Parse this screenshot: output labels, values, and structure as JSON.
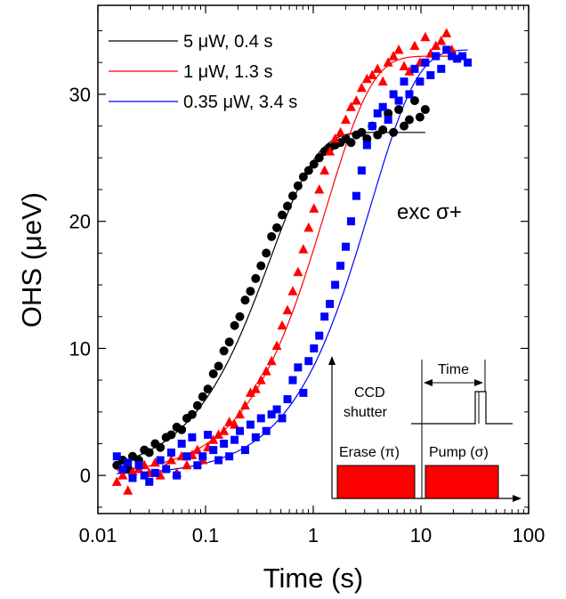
{
  "chart_data": {
    "type": "scatter",
    "xlabel": "Time (s)",
    "ylabel": "OHS (μeV)",
    "x_scale": "log",
    "xlim": [
      0.01,
      100
    ],
    "ylim": [
      -3,
      37
    ],
    "x_ticks": [
      0.01,
      0.1,
      1,
      10,
      100
    ],
    "x_tick_labels": [
      "0.01",
      "0.1",
      "1",
      "10",
      "100"
    ],
    "y_ticks": [
      0,
      10,
      20,
      30
    ],
    "y_tick_labels": [
      "0",
      "10",
      "20",
      "30"
    ],
    "legend_position": "top-left",
    "annotation": "exc σ+",
    "series": [
      {
        "name": "5 μW, 0.4 s",
        "color": "#000000",
        "marker": "circle",
        "x": [
          0.015,
          0.017,
          0.019,
          0.021,
          0.024,
          0.027,
          0.03,
          0.034,
          0.038,
          0.043,
          0.048,
          0.054,
          0.06,
          0.067,
          0.075,
          0.084,
          0.094,
          0.105,
          0.118,
          0.132,
          0.148,
          0.166,
          0.186,
          0.208,
          0.233,
          0.261,
          0.292,
          0.327,
          0.366,
          0.41,
          0.459,
          0.514,
          0.576,
          0.645,
          0.722,
          0.809,
          0.906,
          1.015,
          1.137,
          1.273,
          1.426,
          1.597,
          1.789,
          2.003,
          2.244,
          2.513,
          2.815,
          3.153,
          3.531,
          3.955,
          4.43,
          4.961,
          5.557,
          6.224,
          6.971,
          7.807,
          8.744,
          9.793,
          10.97
        ],
        "y": [
          0.8,
          1.2,
          0.5,
          1.5,
          1.2,
          2.0,
          1.8,
          2.5,
          2.2,
          3.0,
          3.2,
          3.8,
          3.6,
          4.5,
          4.8,
          5.5,
          6.2,
          6.8,
          8.0,
          8.6,
          9.8,
          10.5,
          11.8,
          12.5,
          13.8,
          14.5,
          15.5,
          16.5,
          17.5,
          18.8,
          19.5,
          20.5,
          21.2,
          22.0,
          22.8,
          23.5,
          24.0,
          24.5,
          25.0,
          25.5,
          25.8,
          26.0,
          26.2,
          26.5,
          26.2,
          26.8,
          27.0,
          26.5,
          27.5,
          26.8,
          27.2,
          28.5,
          27.0,
          28.8,
          27.5,
          28.0,
          29.5,
          28.2,
          28.8
        ],
        "fit_tau_s": 0.4,
        "fit_plateau": 27
      },
      {
        "name": "1 μW, 1.3 s",
        "color": "#ff0000",
        "marker": "triangle",
        "x": [
          0.015,
          0.017,
          0.019,
          0.021,
          0.024,
          0.027,
          0.03,
          0.034,
          0.038,
          0.043,
          0.048,
          0.054,
          0.06,
          0.067,
          0.075,
          0.084,
          0.094,
          0.105,
          0.118,
          0.132,
          0.148,
          0.166,
          0.186,
          0.208,
          0.233,
          0.261,
          0.292,
          0.327,
          0.366,
          0.41,
          0.459,
          0.514,
          0.576,
          0.645,
          0.722,
          0.809,
          0.906,
          1.015,
          1.137,
          1.273,
          1.426,
          1.597,
          1.789,
          2.003,
          2.244,
          2.513,
          2.815,
          3.153,
          3.531,
          3.955,
          4.43,
          4.961,
          5.557,
          6.224,
          6.971,
          7.807,
          8.744,
          9.793,
          10.97,
          12.29,
          13.76,
          15.42,
          17.27,
          19.34
        ],
        "y": [
          -0.5,
          0.0,
          -1.2,
          0.3,
          0.5,
          0.8,
          0.2,
          1.0,
          0.0,
          0.6,
          1.2,
          0.2,
          1.5,
          0.8,
          1.6,
          2.0,
          1.2,
          2.2,
          2.8,
          3.2,
          3.5,
          4.2,
          4.0,
          4.8,
          5.5,
          6.5,
          6.8,
          7.5,
          8.2,
          9.0,
          10.2,
          11.8,
          13.0,
          14.5,
          16.0,
          17.8,
          19.5,
          21.0,
          22.5,
          24.0,
          25.5,
          26.5,
          27.0,
          28.0,
          29.0,
          29.5,
          30.5,
          31.2,
          31.5,
          32.0,
          31.0,
          32.5,
          33.0,
          33.5,
          32.2,
          31.8,
          33.8,
          32.5,
          34.5,
          33.2,
          33.8,
          34.2,
          34.8,
          33.5
        ],
        "fit_tau_s": 1.3,
        "fit_plateau": 33
      },
      {
        "name": "0.35 μW, 3.4 s",
        "color": "#0000ff",
        "marker": "square",
        "x": [
          0.015,
          0.017,
          0.019,
          0.021,
          0.024,
          0.027,
          0.03,
          0.034,
          0.038,
          0.043,
          0.048,
          0.054,
          0.06,
          0.067,
          0.075,
          0.084,
          0.094,
          0.105,
          0.118,
          0.132,
          0.148,
          0.166,
          0.186,
          0.208,
          0.233,
          0.261,
          0.292,
          0.327,
          0.366,
          0.41,
          0.459,
          0.514,
          0.576,
          0.645,
          0.722,
          0.809,
          0.906,
          1.015,
          1.137,
          1.273,
          1.426,
          1.597,
          1.789,
          2.003,
          2.244,
          2.513,
          2.815,
          3.153,
          3.531,
          3.955,
          4.43,
          4.961,
          5.557,
          6.224,
          6.971,
          7.807,
          8.744,
          9.793,
          10.97,
          12.29,
          13.76,
          15.42,
          17.27,
          19.34,
          21.67,
          24.27,
          27.18
        ],
        "y": [
          1.5,
          0.5,
          1.0,
          -0.2,
          0.8,
          0.0,
          -0.5,
          0.2,
          1.2,
          0.5,
          1.8,
          0.0,
          2.5,
          1.5,
          3.0,
          0.8,
          1.5,
          3.2,
          2.0,
          1.2,
          2.5,
          1.5,
          2.8,
          3.5,
          2.0,
          4.0,
          3.0,
          4.5,
          3.5,
          4.8,
          5.2,
          4.5,
          6.0,
          7.5,
          8.5,
          6.5,
          9.0,
          10.0,
          11.0,
          12.5,
          13.5,
          15.0,
          16.5,
          18.0,
          20.0,
          22.0,
          24.0,
          26.0,
          27.5,
          28.5,
          29.0,
          28.0,
          30.0,
          29.5,
          31.0,
          30.0,
          32.0,
          31.0,
          32.5,
          31.5,
          33.0,
          32.0,
          33.5,
          33.0,
          32.8,
          33.0,
          32.5
        ],
        "fit_tau_s": 3.4,
        "fit_plateau": 33.5
      }
    ],
    "inset": {
      "labels": {
        "time": "Time",
        "ccd_line1": "CCD",
        "ccd_line2": "shutter",
        "erase": "Erase (π)",
        "pump": "Pump (σ)"
      },
      "bar_color": "#ff0000"
    }
  }
}
